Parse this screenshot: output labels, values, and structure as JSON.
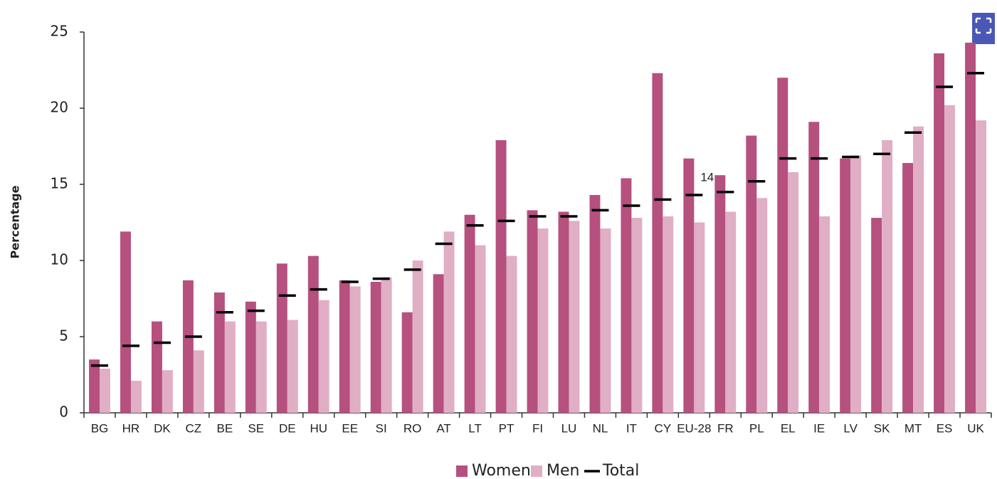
{
  "chart_data": {
    "type": "bar",
    "y_label": "Percentage",
    "categories": [
      "BG",
      "HR",
      "DK",
      "CZ",
      "BE",
      "SE",
      "DE",
      "HU",
      "EE",
      "SI",
      "RO",
      "AT",
      "LT",
      "PT",
      "FI",
      "LU",
      "NL",
      "IT",
      "CY",
      "EU-28",
      "FR",
      "PL",
      "EL",
      "IE",
      "LV",
      "SK",
      "MT",
      "ES",
      "UK"
    ],
    "series": [
      {
        "name": "Women",
        "color": "#b5507f",
        "mark": "bar",
        "values": [
          3.5,
          11.9,
          6.0,
          8.7,
          7.9,
          7.3,
          9.8,
          10.3,
          8.7,
          8.6,
          6.6,
          9.1,
          13.0,
          17.9,
          13.3,
          13.2,
          14.3,
          15.4,
          22.3,
          16.7,
          15.6,
          18.2,
          22.0,
          19.1,
          16.7,
          12.8,
          16.4,
          23.6,
          24.3
        ]
      },
      {
        "name": "Men",
        "color": "#e0aec5",
        "mark": "bar",
        "values": [
          2.9,
          2.1,
          2.8,
          4.1,
          6.0,
          6.0,
          6.1,
          7.4,
          8.3,
          8.9,
          10.0,
          11.9,
          11.0,
          10.3,
          12.1,
          12.6,
          12.1,
          12.8,
          12.9,
          12.5,
          13.2,
          14.1,
          15.8,
          12.9,
          16.9,
          17.9,
          18.8,
          20.2,
          19.2
        ]
      },
      {
        "name": "Total",
        "color": "#000000",
        "mark": "dash",
        "values": [
          3.1,
          4.4,
          4.6,
          5.0,
          6.6,
          6.7,
          7.7,
          8.1,
          8.6,
          8.8,
          9.4,
          11.1,
          12.3,
          12.6,
          12.9,
          12.9,
          13.3,
          13.6,
          14.0,
          14.3,
          14.5,
          15.2,
          16.7,
          16.7,
          16.8,
          17.0,
          18.4,
          21.4,
          22.3
        ]
      }
    ],
    "annotation": {
      "category_index": 19,
      "text": "14"
    },
    "ylim": [
      0,
      25
    ],
    "yticks": [
      0,
      5,
      10,
      15,
      20,
      25
    ],
    "grid": false,
    "legend": "bottom"
  }
}
